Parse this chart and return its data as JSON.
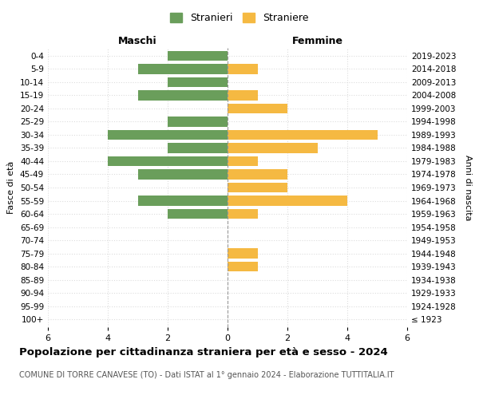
{
  "age_groups": [
    "100+",
    "95-99",
    "90-94",
    "85-89",
    "80-84",
    "75-79",
    "70-74",
    "65-69",
    "60-64",
    "55-59",
    "50-54",
    "45-49",
    "40-44",
    "35-39",
    "30-34",
    "25-29",
    "20-24",
    "15-19",
    "10-14",
    "5-9",
    "0-4"
  ],
  "birth_years": [
    "≤ 1923",
    "1924-1928",
    "1929-1933",
    "1934-1938",
    "1939-1943",
    "1944-1948",
    "1949-1953",
    "1954-1958",
    "1959-1963",
    "1964-1968",
    "1969-1973",
    "1974-1978",
    "1979-1983",
    "1984-1988",
    "1989-1993",
    "1994-1998",
    "1999-2003",
    "2004-2008",
    "2009-2013",
    "2014-2018",
    "2019-2023"
  ],
  "males": [
    0,
    0,
    0,
    0,
    0,
    0,
    0,
    0,
    2,
    3,
    0,
    3,
    4,
    2,
    4,
    2,
    0,
    3,
    2,
    3,
    2
  ],
  "females": [
    0,
    0,
    0,
    0,
    1,
    1,
    0,
    0,
    1,
    4,
    2,
    2,
    1,
    3,
    5,
    0,
    2,
    1,
    0,
    1,
    0
  ],
  "male_color": "#6a9e5b",
  "female_color": "#f5b942",
  "bar_height": 0.75,
  "xlim": 6,
  "title": "Popolazione per cittadinanza straniera per età e sesso - 2024",
  "subtitle": "COMUNE DI TORRE CANAVESE (TO) - Dati ISTAT al 1° gennaio 2024 - Elaborazione TUTTITALIA.IT",
  "xlabel_left": "Maschi",
  "xlabel_right": "Femmine",
  "ylabel_left": "Fasce di età",
  "ylabel_right": "Anni di nascita",
  "legend_stranieri": "Stranieri",
  "legend_straniere": "Straniere",
  "background_color": "#ffffff",
  "grid_color": "#dddddd"
}
